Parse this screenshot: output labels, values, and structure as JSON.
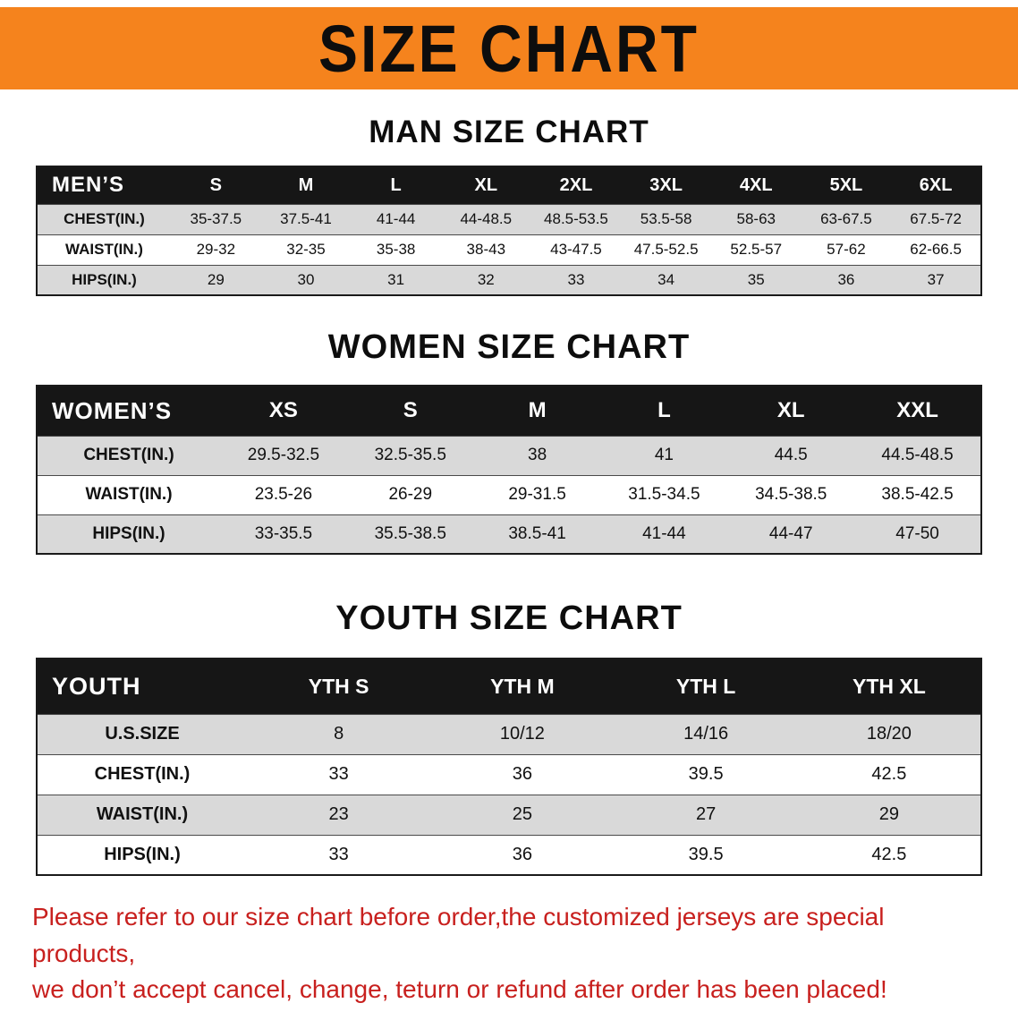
{
  "banner": {
    "title": "SIZE CHART",
    "bg_color": "#f5831d"
  },
  "sections": {
    "men": {
      "heading": "MAN SIZE CHART",
      "table": {
        "header": [
          "MEN’S",
          "S",
          "M",
          "L",
          "XL",
          "2XL",
          "3XL",
          "4XL",
          "5XL",
          "6XL"
        ],
        "rows": [
          [
            "CHEST(IN.)",
            "35-37.5",
            "37.5-41",
            "41-44",
            "44-48.5",
            "48.5-53.5",
            "53.5-58",
            "58-63",
            "63-67.5",
            "67.5-72"
          ],
          [
            "WAIST(IN.)",
            "29-32",
            "32-35",
            "35-38",
            "38-43",
            "43-47.5",
            "47.5-52.5",
            "52.5-57",
            "57-62",
            "62-66.5"
          ],
          [
            "HIPS(IN.)",
            "29",
            "30",
            "31",
            "32",
            "33",
            "34",
            "35",
            "36",
            "37"
          ]
        ]
      }
    },
    "women": {
      "heading": "WOMEN SIZE CHART",
      "table": {
        "header": [
          "WOMEN’S",
          "XS",
          "S",
          "M",
          "L",
          "XL",
          "XXL"
        ],
        "rows": [
          [
            "CHEST(IN.)",
            "29.5-32.5",
            "32.5-35.5",
            "38",
            "41",
            "44.5",
            "44.5-48.5"
          ],
          [
            "WAIST(IN.)",
            "23.5-26",
            "26-29",
            "29-31.5",
            "31.5-34.5",
            "34.5-38.5",
            "38.5-42.5"
          ],
          [
            "HIPS(IN.)",
            "33-35.5",
            "35.5-38.5",
            "38.5-41",
            "41-44",
            "44-47",
            "47-50"
          ]
        ]
      }
    },
    "youth": {
      "heading": "YOUTH SIZE CHART",
      "table": {
        "header": [
          "YOUTH",
          "YTH S",
          "YTH M",
          "YTH L",
          "YTH XL"
        ],
        "rows": [
          [
            "U.S.SIZE",
            "8",
            "10/12",
            "14/16",
            "18/20"
          ],
          [
            "CHEST(IN.)",
            "33",
            "36",
            "39.5",
            "42.5"
          ],
          [
            "WAIST(IN.)",
            "23",
            "25",
            "27",
            "29"
          ],
          [
            "HIPS(IN.)",
            "33",
            "36",
            "39.5",
            "42.5"
          ]
        ]
      }
    }
  },
  "disclaimer": {
    "line1": "Please refer to our size chart before order,the customized jerseys are special products,",
    "line2": "we don’t accept cancel, change, teturn or refund after order has been placed!",
    "color": "#c8201e"
  }
}
